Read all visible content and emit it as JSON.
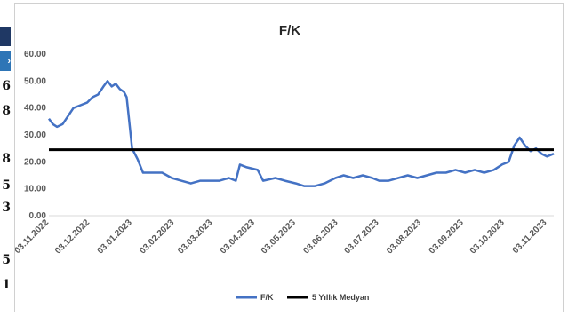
{
  "left_strip": {
    "digits": [
      "6",
      "8",
      "8",
      "5",
      "3",
      "5",
      "1"
    ],
    "badge_icon": "chevron-icon"
  },
  "chart_data": {
    "type": "line",
    "title": "F/K",
    "xlabel": "",
    "ylabel": "",
    "ylim": [
      0,
      60
    ],
    "yticks": [
      "0.00",
      "10.00",
      "20.00",
      "30.00",
      "40.00",
      "50.00",
      "60.00"
    ],
    "xticks": [
      "03.11.2022",
      "03.12.2022",
      "03.01.2023",
      "03.02.2023",
      "03.03.2023",
      "03.04.2023",
      "03.05.2023",
      "03.06.2023",
      "03.07.2023",
      "03.08.2023",
      "03.09.2023",
      "03.10.2023",
      "03.11.2023"
    ],
    "grid": false,
    "legend_position": "bottom",
    "series": [
      {
        "name": "F/K",
        "color": "#4472c4",
        "points": [
          [
            "2022-11-03",
            36
          ],
          [
            "2022-11-06",
            34
          ],
          [
            "2022-11-09",
            33
          ],
          [
            "2022-11-13",
            34
          ],
          [
            "2022-11-17",
            37
          ],
          [
            "2022-11-21",
            40
          ],
          [
            "2022-11-26",
            41
          ],
          [
            "2022-12-01",
            42
          ],
          [
            "2022-12-05",
            44
          ],
          [
            "2022-12-09",
            45
          ],
          [
            "2022-12-13",
            48
          ],
          [
            "2022-12-16",
            50
          ],
          [
            "2022-12-19",
            48
          ],
          [
            "2022-12-22",
            49
          ],
          [
            "2022-12-25",
            47
          ],
          [
            "2022-12-28",
            46
          ],
          [
            "2022-12-30",
            44
          ],
          [
            "2023-01-03",
            25
          ],
          [
            "2023-01-07",
            21
          ],
          [
            "2023-01-11",
            16
          ],
          [
            "2023-01-18",
            16
          ],
          [
            "2023-01-25",
            16
          ],
          [
            "2023-02-01",
            14
          ],
          [
            "2023-02-08",
            13
          ],
          [
            "2023-02-15",
            12
          ],
          [
            "2023-02-22",
            13
          ],
          [
            "2023-03-01",
            13
          ],
          [
            "2023-03-08",
            13
          ],
          [
            "2023-03-15",
            14
          ],
          [
            "2023-03-20",
            13
          ],
          [
            "2023-03-23",
            19
          ],
          [
            "2023-03-28",
            18
          ],
          [
            "2023-04-05",
            17
          ],
          [
            "2023-04-09",
            13
          ],
          [
            "2023-04-18",
            14
          ],
          [
            "2023-04-25",
            13
          ],
          [
            "2023-05-03",
            12
          ],
          [
            "2023-05-09",
            11
          ],
          [
            "2023-05-17",
            11
          ],
          [
            "2023-05-24",
            12
          ],
          [
            "2023-06-01",
            14
          ],
          [
            "2023-06-07",
            15
          ],
          [
            "2023-06-14",
            14
          ],
          [
            "2023-06-21",
            15
          ],
          [
            "2023-06-28",
            14
          ],
          [
            "2023-07-03",
            13
          ],
          [
            "2023-07-10",
            13
          ],
          [
            "2023-07-17",
            14
          ],
          [
            "2023-07-24",
            15
          ],
          [
            "2023-07-31",
            14
          ],
          [
            "2023-08-07",
            15
          ],
          [
            "2023-08-14",
            16
          ],
          [
            "2023-08-21",
            16
          ],
          [
            "2023-08-28",
            17
          ],
          [
            "2023-09-04",
            16
          ],
          [
            "2023-09-11",
            17
          ],
          [
            "2023-09-18",
            16
          ],
          [
            "2023-09-25",
            17
          ],
          [
            "2023-10-01",
            19
          ],
          [
            "2023-10-06",
            20
          ],
          [
            "2023-10-10",
            26
          ],
          [
            "2023-10-14",
            29
          ],
          [
            "2023-10-18",
            26
          ],
          [
            "2023-10-22",
            24
          ],
          [
            "2023-10-26",
            25
          ],
          [
            "2023-10-30",
            23
          ],
          [
            "2023-11-03",
            22
          ],
          [
            "2023-11-08",
            23
          ]
        ]
      },
      {
        "name": "5 Yıllık Medyan",
        "color": "#000000",
        "constant": 24.5,
        "x_range": [
          "2022-11-03",
          "2023-11-08"
        ]
      }
    ]
  }
}
